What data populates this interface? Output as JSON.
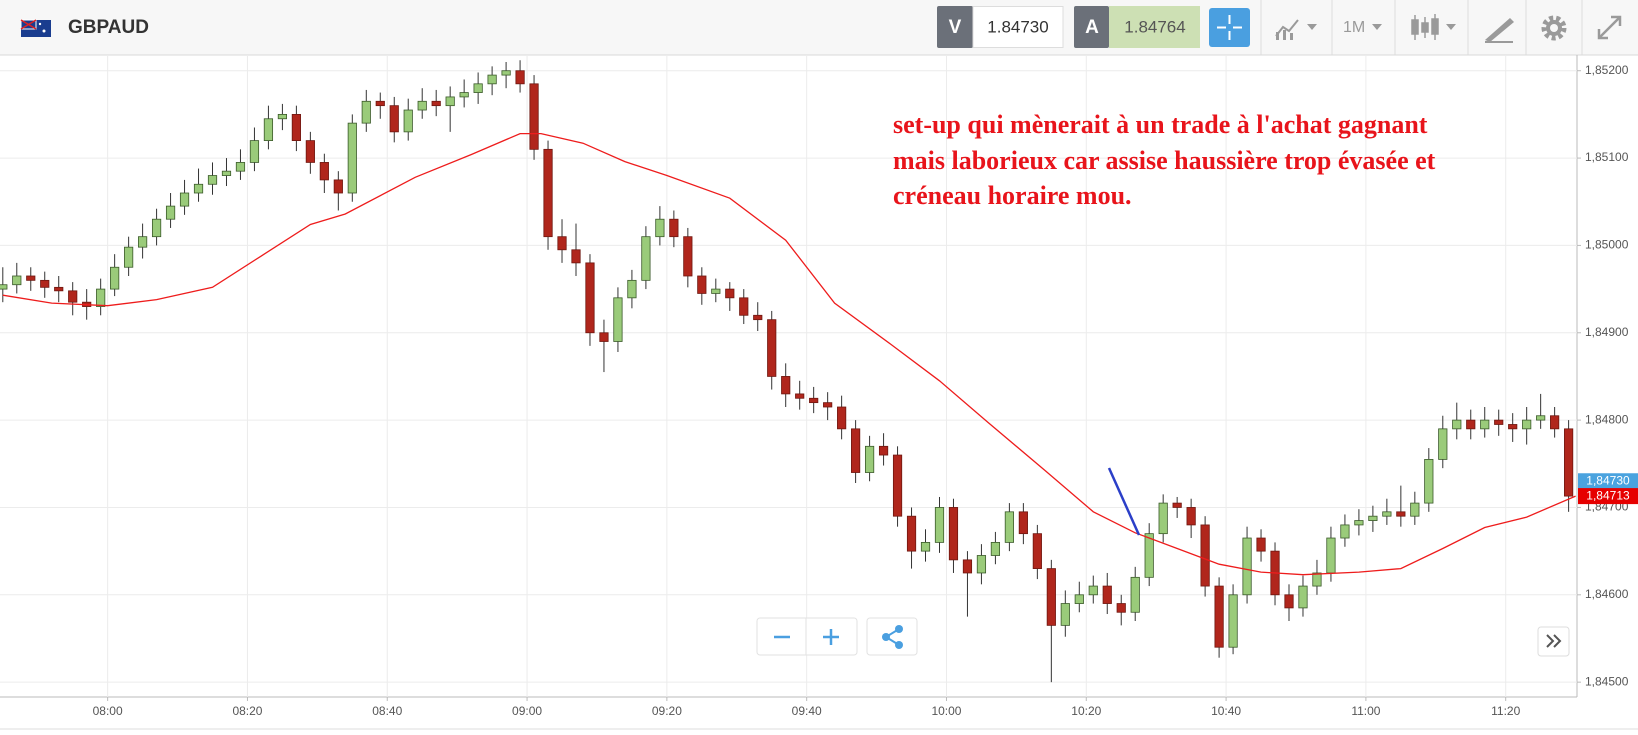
{
  "header": {
    "symbol": "GBPAUD",
    "sell_label": "V",
    "sell_price": "1.84730",
    "buy_label": "A",
    "buy_price": "1.84764",
    "timeframe": "1M"
  },
  "chart_data": {
    "type": "candlestick",
    "x": [
      465,
      467,
      469,
      471,
      473,
      475,
      477,
      479,
      481,
      483,
      485,
      487,
      489,
      491,
      493,
      495,
      497,
      499,
      501,
      503,
      505,
      507,
      509,
      511,
      513,
      515,
      517,
      519,
      521,
      523,
      525,
      527,
      529,
      531,
      533,
      535,
      537,
      539,
      541,
      543,
      545,
      547,
      549,
      551,
      553,
      555,
      557,
      559,
      561,
      563,
      565,
      567,
      569,
      571,
      573,
      575,
      577,
      579,
      581,
      583,
      585,
      587,
      589,
      591,
      593,
      595,
      597,
      599,
      601,
      603,
      605,
      607,
      609,
      611,
      613,
      615,
      617,
      619,
      621,
      623,
      625,
      627,
      629,
      631,
      633,
      635,
      637,
      639,
      641,
      643,
      645,
      647,
      649,
      651,
      653,
      655,
      657,
      659,
      661,
      663,
      665,
      667,
      669,
      671,
      673,
      675,
      677,
      679,
      681,
      683,
      685,
      687,
      689
    ],
    "open": [
      1.8495,
      1.84955,
      1.84965,
      1.8496,
      1.84952,
      1.84948,
      1.84935,
      1.8493,
      1.8495,
      1.84975,
      1.84998,
      1.8501,
      1.8503,
      1.85045,
      1.8506,
      1.8507,
      1.8508,
      1.85085,
      1.85095,
      1.8512,
      1.85145,
      1.8515,
      1.8512,
      1.85095,
      1.85075,
      1.8506,
      1.8514,
      1.85165,
      1.8516,
      1.8513,
      1.85155,
      1.85165,
      1.8516,
      1.8517,
      1.85175,
      1.85185,
      1.85195,
      1.852,
      1.85185,
      1.8511,
      1.8501,
      1.84995,
      1.8498,
      1.849,
      1.8489,
      1.8494,
      1.8496,
      1.8501,
      1.8503,
      1.8501,
      1.84965,
      1.84945,
      1.8495,
      1.8494,
      1.8492,
      1.84915,
      1.8485,
      1.8483,
      1.84825,
      1.8482,
      1.84815,
      1.8479,
      1.8474,
      1.8477,
      1.8476,
      1.8469,
      1.8465,
      1.8466,
      1.847,
      1.8464,
      1.84625,
      1.84645,
      1.8466,
      1.84695,
      1.8467,
      1.8463,
      1.84565,
      1.8459,
      1.846,
      1.8461,
      1.8459,
      1.8458,
      1.8462,
      1.8467,
      1.84705,
      1.847,
      1.8468,
      1.8461,
      1.8454,
      1.846,
      1.84665,
      1.8465,
      1.846,
      1.84585,
      1.8461,
      1.84625,
      1.84665,
      1.8468,
      1.84685,
      1.8469,
      1.84695,
      1.8469,
      1.84705,
      1.84755,
      1.8479,
      1.848,
      1.8479,
      1.848,
      1.84795,
      1.8479,
      1.848,
      1.84805,
      1.8479
    ],
    "high": [
      1.84975,
      1.8498,
      1.84975,
      1.8497,
      1.84965,
      1.84958,
      1.8495,
      1.84962,
      1.8499,
      1.8501,
      1.85025,
      1.85042,
      1.8506,
      1.85075,
      1.85088,
      1.85095,
      1.851,
      1.8511,
      1.85135,
      1.8516,
      1.85162,
      1.8516,
      1.8513,
      1.85105,
      1.85085,
      1.8515,
      1.85178,
      1.85175,
      1.8517,
      1.85168,
      1.8518,
      1.85178,
      1.85182,
      1.8519,
      1.85198,
      1.85205,
      1.8521,
      1.85212,
      1.85195,
      1.8512,
      1.8503,
      1.85025,
      1.8499,
      1.84915,
      1.84952,
      1.84972,
      1.85022,
      1.85045,
      1.8504,
      1.8502,
      1.84975,
      1.84962,
      1.84958,
      1.8495,
      1.84935,
      1.84925,
      1.84865,
      1.84845,
      1.84838,
      1.84832,
      1.84828,
      1.848,
      1.84782,
      1.84785,
      1.8477,
      1.847,
      1.84675,
      1.84712,
      1.8471,
      1.8465,
      1.84658,
      1.84672,
      1.84705,
      1.84705,
      1.8468,
      1.8464,
      1.84605,
      1.84615,
      1.84622,
      1.84625,
      1.846,
      1.84632,
      1.84682,
      1.84715,
      1.84712,
      1.8471,
      1.8469,
      1.8462,
      1.84612,
      1.84678,
      1.84675,
      1.8466,
      1.84612,
      1.84622,
      1.8464,
      1.84678,
      1.84692,
      1.84698,
      1.84702,
      1.8471,
      1.84725,
      1.84718,
      1.84768,
      1.84805,
      1.8482,
      1.84812,
      1.84815,
      1.84812,
      1.84808,
      1.84815,
      1.8483,
      1.84815,
      1.848
    ],
    "low": [
      1.84935,
      1.84945,
      1.84948,
      1.8494,
      1.84935,
      1.8492,
      1.84915,
      1.8492,
      1.84942,
      1.84965,
      1.84985,
      1.85,
      1.8502,
      1.85035,
      1.8505,
      1.85058,
      1.85068,
      1.85075,
      1.85085,
      1.8511,
      1.85132,
      1.85108,
      1.85082,
      1.8506,
      1.8504,
      1.8505,
      1.8513,
      1.85145,
      1.85118,
      1.8512,
      1.85145,
      1.85148,
      1.8513,
      1.85158,
      1.85162,
      1.85172,
      1.8518,
      1.85175,
      1.85098,
      1.84995,
      1.8498,
      1.84965,
      1.84885,
      1.84855,
      1.84878,
      1.84928,
      1.8495,
      1.85,
      1.84998,
      1.84952,
      1.84932,
      1.84935,
      1.84925,
      1.8491,
      1.84902,
      1.84835,
      1.84815,
      1.84812,
      1.84808,
      1.848,
      1.84778,
      1.84728,
      1.8473,
      1.84748,
      1.84678,
      1.8463,
      1.84638,
      1.84648,
      1.84625,
      1.84575,
      1.84612,
      1.84635,
      1.8465,
      1.84658,
      1.84618,
      1.845,
      1.84552,
      1.8458,
      1.8459,
      1.84578,
      1.84565,
      1.8457,
      1.8461,
      1.8466,
      1.84688,
      1.84665,
      1.84598,
      1.84528,
      1.84532,
      1.8459,
      1.84638,
      1.84588,
      1.8457,
      1.84575,
      1.846,
      1.84615,
      1.84655,
      1.84668,
      1.84672,
      1.8468,
      1.84678,
      1.8468,
      1.84695,
      1.84745,
      1.84778,
      1.84778,
      1.8478,
      1.84782,
      1.84775,
      1.84772,
      1.8479,
      1.8478,
      1.84695
    ],
    "close": [
      1.84955,
      1.84965,
      1.8496,
      1.84952,
      1.84948,
      1.84935,
      1.8493,
      1.8495,
      1.84975,
      1.84998,
      1.8501,
      1.8503,
      1.85045,
      1.8506,
      1.8507,
      1.8508,
      1.85085,
      1.85095,
      1.8512,
      1.85145,
      1.8515,
      1.8512,
      1.85095,
      1.85075,
      1.8506,
      1.8514,
      1.85165,
      1.8516,
      1.8513,
      1.85155,
      1.85165,
      1.8516,
      1.8517,
      1.85175,
      1.85185,
      1.85195,
      1.852,
      1.85185,
      1.8511,
      1.8501,
      1.84995,
      1.8498,
      1.849,
      1.8489,
      1.8494,
      1.8496,
      1.8501,
      1.8503,
      1.8501,
      1.84965,
      1.84945,
      1.8495,
      1.8494,
      1.8492,
      1.84915,
      1.8485,
      1.8483,
      1.84825,
      1.8482,
      1.84815,
      1.8479,
      1.8474,
      1.8477,
      1.8476,
      1.8469,
      1.8465,
      1.8466,
      1.847,
      1.8464,
      1.84625,
      1.84645,
      1.8466,
      1.84695,
      1.8467,
      1.8463,
      1.84565,
      1.8459,
      1.846,
      1.8461,
      1.8459,
      1.8458,
      1.8462,
      1.8467,
      1.84705,
      1.847,
      1.8468,
      1.8461,
      1.8454,
      1.846,
      1.84665,
      1.8465,
      1.846,
      1.84585,
      1.8461,
      1.84625,
      1.84665,
      1.8468,
      1.84685,
      1.8469,
      1.84695,
      1.8469,
      1.84705,
      1.84755,
      1.8479,
      1.848,
      1.8479,
      1.848,
      1.84795,
      1.8479,
      1.848,
      1.84805,
      1.8479,
      1.84713
    ],
    "up_color": "#9acb7a",
    "down_color": "#b0261c",
    "wick_color": "#333333",
    "moving_average": {
      "color": "#ee1c1c",
      "x": [
        465,
        472,
        480,
        487,
        495,
        502,
        509,
        514,
        524,
        532,
        539,
        542,
        548,
        554,
        560,
        569,
        577,
        584,
        592,
        599,
        606,
        614,
        621,
        627,
        633,
        639,
        645,
        651,
        659,
        665,
        671,
        677,
        683,
        690
      ],
      "values": [
        1.84943,
        1.84934,
        1.84931,
        1.84938,
        1.84952,
        1.84988,
        1.85024,
        1.85036,
        1.85078,
        1.85104,
        1.85128,
        1.85128,
        1.85117,
        1.85096,
        1.8508,
        1.85054,
        1.85006,
        1.84934,
        1.84887,
        1.84845,
        1.84797,
        1.84743,
        1.84695,
        1.84671,
        1.84653,
        1.84635,
        1.84626,
        1.84623,
        1.84626,
        1.8463,
        1.84653,
        1.84677,
        1.84689,
        1.84713
      ]
    },
    "xlim": [
      464.6,
      690.2
    ],
    "xticks": [
      {
        "value": 480,
        "label": "08:00"
      },
      {
        "value": 500,
        "label": "08:20"
      },
      {
        "value": 520,
        "label": "08:40"
      },
      {
        "value": 540,
        "label": "09:00"
      },
      {
        "value": 560,
        "label": "09:20"
      },
      {
        "value": 580,
        "label": "09:40"
      },
      {
        "value": 600,
        "label": "10:00"
      },
      {
        "value": 620,
        "label": "10:20"
      },
      {
        "value": 640,
        "label": "10:40"
      },
      {
        "value": 660,
        "label": "11:00"
      },
      {
        "value": 680,
        "label": "11:20"
      }
    ],
    "ylim": [
      1.84483,
      1.85218
    ],
    "yticks": [
      {
        "value": 1.852,
        "label": "1,85200"
      },
      {
        "value": 1.851,
        "label": "1,85100"
      },
      {
        "value": 1.85,
        "label": "1,85000"
      },
      {
        "value": 1.849,
        "label": "1,84900"
      },
      {
        "value": 1.848,
        "label": "1,84800"
      },
      {
        "value": 1.847,
        "label": "1,84700"
      },
      {
        "value": 1.846,
        "label": "1,84600"
      },
      {
        "value": 1.845,
        "label": "1,84500"
      }
    ],
    "price_labels": [
      {
        "value": 1.8473,
        "label": "1,84730",
        "color": "#4aa3df"
      },
      {
        "value": 1.84713,
        "label": "1,84713",
        "color": "#e60000"
      }
    ],
    "grid": true,
    "annotation": [
      "set-up qui mènerait à un trade à l'achat gagnant",
      "mais laborieux car assise haussière trop évasée et",
      "créneau horaire mou."
    ]
  }
}
